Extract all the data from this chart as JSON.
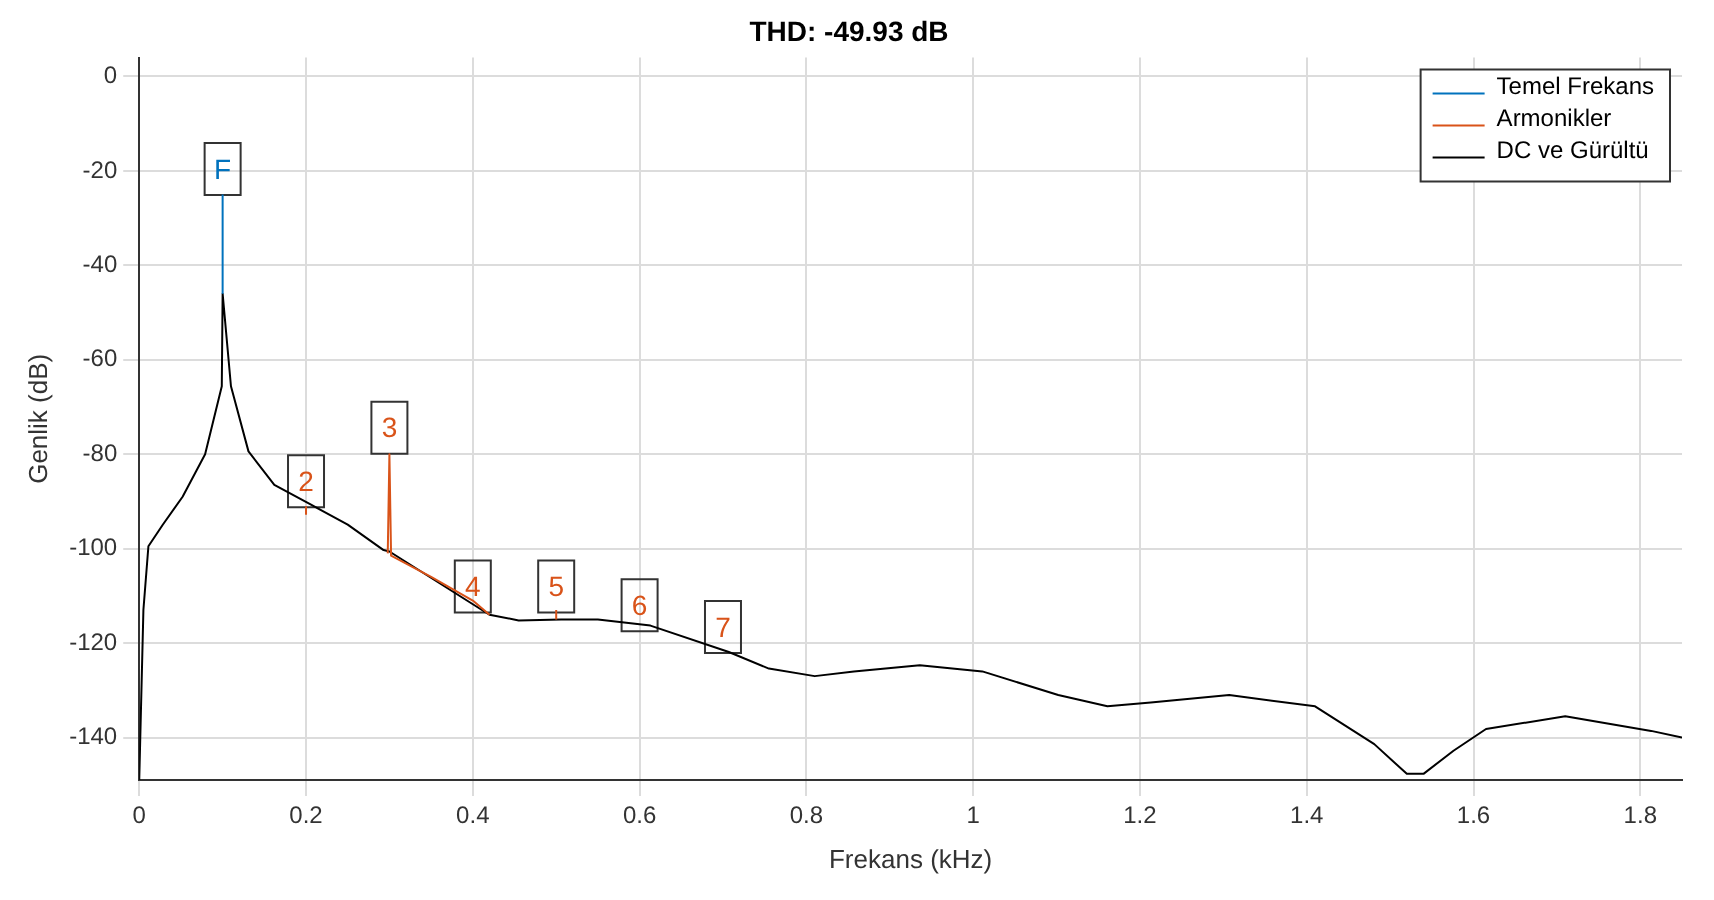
{
  "chart_data": {
    "type": "line",
    "title": "THD: -49.93 dB",
    "xlabel": "Frekans (kHz)",
    "ylabel": "Genlik (dB)",
    "xlim": [
      0,
      1.85
    ],
    "xticks": [
      0,
      0.2,
      0.4,
      0.6,
      0.8,
      1,
      1.2,
      1.4,
      1.6,
      1.8
    ],
    "ylim": [
      -149,
      4
    ],
    "yticks": [
      -140,
      -120,
      -100,
      -80,
      -60,
      -40,
      -20,
      0
    ],
    "grid": true,
    "legend": "top right",
    "line_style": "solid",
    "series": [
      {
        "name": "Temel Frekans",
        "color": "#0072bd",
        "x": [
          0.1,
          0.1
        ],
        "values": [
          -46,
          -25
        ]
      },
      {
        "name": "Armonikler",
        "color": "#d95319",
        "x": [
          0.2,
          0.2,
          0.25,
          0.298,
          0.3,
          0.302,
          0.35,
          0.4,
          0.42,
          0.45,
          0.5,
          0.5
        ],
        "values": [
          -92.8,
          -91,
          null,
          -101,
          -80,
          -101.5,
          -106,
          -111,
          -114,
          null,
          -115,
          -113
        ]
      },
      {
        "name": "DC ve Gürültü",
        "color": "#000000",
        "x": [
          0,
          0.005,
          0.011,
          0.028,
          0.052,
          0.079,
          0.099,
          0.1,
          0.11,
          0.131,
          0.162,
          0.206,
          0.25,
          0.293,
          0.3,
          0.42,
          0.455,
          0.506,
          0.55,
          0.613,
          0.707,
          0.755,
          0.81,
          0.857,
          0.936,
          1.011,
          1.102,
          1.161,
          1.213,
          1.307,
          1.41,
          1.481,
          1.52,
          1.54,
          1.576,
          1.615,
          1.71,
          1.813,
          1.85
        ],
        "values": [
          -149,
          -113,
          -99.5,
          -95,
          -89,
          -80,
          -65.6,
          -46,
          -65.6,
          -79.4,
          -86.5,
          -90.7,
          -94.9,
          -100.3,
          -100.6,
          -114,
          -115.2,
          -115,
          -115,
          -116.3,
          -121.9,
          -125.4,
          -127,
          -126,
          -124.7,
          -126,
          -131,
          -133.4,
          -132.6,
          -131,
          -133.4,
          -141.4,
          -147.7,
          -147.7,
          -142.8,
          -138.2,
          -135.5,
          -138.6,
          -140
        ]
      }
    ],
    "annotations": [
      {
        "text": "F",
        "x": 0.1,
        "y": -19.6
      },
      {
        "text": "2",
        "x": 0.2,
        "y": -85.7
      },
      {
        "text": "3",
        "x": 0.3,
        "y": -74.4
      },
      {
        "text": "4",
        "x": 0.4,
        "y": -108
      },
      {
        "text": "5",
        "x": 0.5,
        "y": -108
      },
      {
        "text": "6",
        "x": 0.6,
        "y": -112
      },
      {
        "text": "7",
        "x": 0.7,
        "y": -116.6
      }
    ]
  }
}
